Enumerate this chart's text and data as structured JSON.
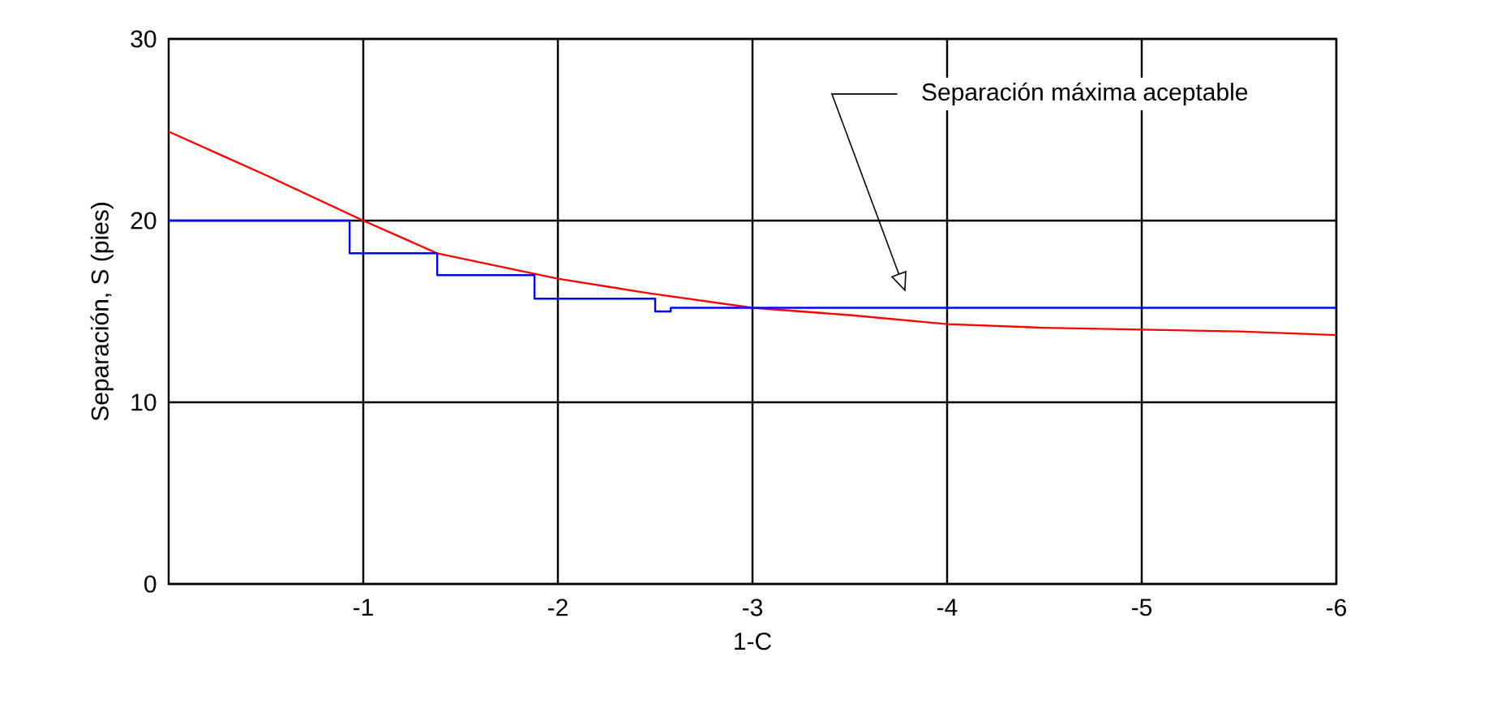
{
  "chart_data": {
    "type": "line",
    "xlabel": "1-C",
    "ylabel": "Separación, S (pies)",
    "xlim": [
      0,
      -6
    ],
    "xticks": [
      -1,
      -2,
      -3,
      -4,
      -5,
      -6
    ],
    "ylim": [
      0,
      30
    ],
    "yticks": [
      0,
      10,
      20,
      30
    ],
    "grid": true,
    "series": [
      {
        "color": "#ff0000",
        "x": [
          0,
          -0.5,
          -1,
          -1.38,
          -2,
          -2.47,
          -3,
          -3.5,
          -4,
          -4.5,
          -5,
          -5.5,
          -6
        ],
        "values": [
          24.9,
          22.5,
          20.0,
          18.2,
          16.8,
          16.0,
          15.2,
          14.8,
          14.3,
          14.1,
          14.0,
          13.9,
          13.7
        ]
      },
      {
        "type": "step",
        "color": "#0000ff",
        "x": [
          0,
          -0.93,
          -1.38,
          -1.88,
          -2.5,
          -2.58,
          -6
        ],
        "values": [
          20,
          18.2,
          17.0,
          15.7,
          15.0,
          15.2,
          15.2
        ]
      }
    ],
    "annotations": [
      "Separación máxima aceptable"
    ]
  }
}
